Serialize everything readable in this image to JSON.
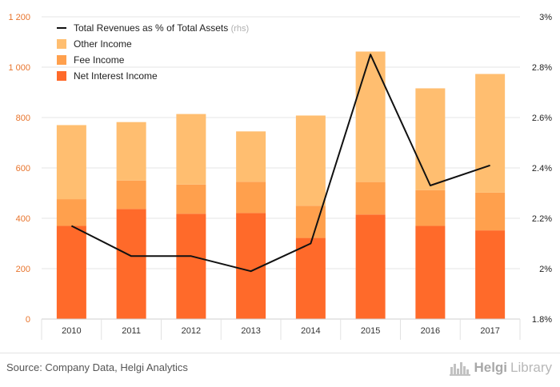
{
  "chart_data": {
    "type": "bar",
    "stacked": true,
    "categories": [
      "2010",
      "2011",
      "2012",
      "2013",
      "2014",
      "2015",
      "2016",
      "2017"
    ],
    "series": [
      {
        "name": "Net Interest Income",
        "axis": "left",
        "color": "#ff6a2a",
        "values": [
          370,
          437,
          418,
          421,
          322,
          415,
          370,
          352
        ]
      },
      {
        "name": "Fee Income",
        "axis": "left",
        "color": "#ffa04d",
        "values": [
          106,
          113,
          116,
          124,
          128,
          129,
          142,
          150
        ]
      },
      {
        "name": "Other Income",
        "axis": "left",
        "color": "#ffbe70",
        "values": [
          294,
          232,
          280,
          200,
          358,
          518,
          404,
          471
        ]
      }
    ],
    "line_series": {
      "name": "Total Revenues as % of Total Assets",
      "legend_suffix": "(rhs)",
      "axis": "right",
      "color": "#111111",
      "values": [
        2.17,
        2.05,
        2.05,
        1.99,
        2.1,
        2.85,
        2.33,
        2.41
      ]
    },
    "y_left": {
      "min": 0,
      "max": 1200,
      "ticks": [
        0,
        200,
        400,
        600,
        800,
        1000,
        1200
      ],
      "tick_labels": [
        "0",
        "200",
        "400",
        "600",
        "800",
        "1 000",
        "1 200"
      ],
      "color": "#e8742c"
    },
    "y_right": {
      "min": 1.8,
      "max": 3.0,
      "ticks": [
        1.8,
        2.0,
        2.2,
        2.4,
        2.6,
        2.8,
        3.0
      ],
      "tick_labels": [
        "1.8%",
        "2%",
        "2.2%",
        "2.4%",
        "2.6%",
        "2.8%",
        "3%"
      ]
    },
    "gridlines": true,
    "legend_position": "top-left"
  },
  "footer": {
    "source": "Source: Company Data, Helgi Analytics",
    "logo_brand_a": "Helgi",
    "logo_brand_b": "Library"
  }
}
